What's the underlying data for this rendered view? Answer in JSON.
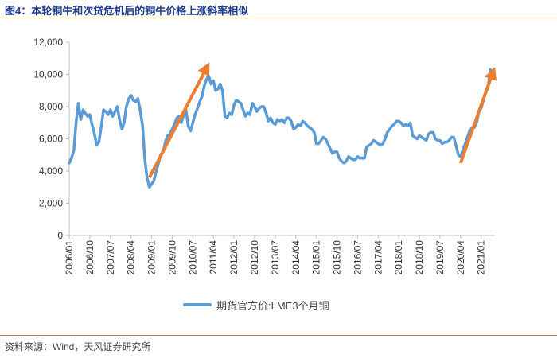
{
  "header": {
    "title": "图4：本轮铜牛和次贷危机后的铜牛价格上涨斜率相似"
  },
  "footer": {
    "source": "资料来源：Wind，天风证券研究所"
  },
  "colors": {
    "line": "#5b9bd5",
    "arrow": "#ed7d31",
    "axis": "#bfbfbf",
    "rule": "#b88a4a",
    "title": "#1f3d8a"
  },
  "chart_data": {
    "type": "line",
    "title": "",
    "xlabel": "",
    "ylabel": "",
    "ylim": [
      0,
      12000
    ],
    "yticks": [
      {
        "value": 0,
        "label": "0"
      },
      {
        "value": 2000,
        "label": "2,000"
      },
      {
        "value": 4000,
        "label": "4,000"
      },
      {
        "value": 6000,
        "label": "6,000"
      },
      {
        "value": 8000,
        "label": "8,000"
      },
      {
        "value": 10000,
        "label": "10,000"
      },
      {
        "value": 12000,
        "label": "12,000"
      }
    ],
    "xlim": [
      2006.0,
      2021.5
    ],
    "xticks": [
      {
        "value": 2006.0,
        "label": "2006/01"
      },
      {
        "value": 2006.75,
        "label": "2006/10"
      },
      {
        "value": 2007.5,
        "label": "2007/07"
      },
      {
        "value": 2008.25,
        "label": "2008/04"
      },
      {
        "value": 2009.0,
        "label": "2009/01"
      },
      {
        "value": 2009.75,
        "label": "2009/10"
      },
      {
        "value": 2010.5,
        "label": "2010/07"
      },
      {
        "value": 2011.25,
        "label": "2011/04"
      },
      {
        "value": 2012.0,
        "label": "2012/01"
      },
      {
        "value": 2012.75,
        "label": "2012/10"
      },
      {
        "value": 2013.5,
        "label": "2013/07"
      },
      {
        "value": 2014.25,
        "label": "2014/04"
      },
      {
        "value": 2015.0,
        "label": "2015/01"
      },
      {
        "value": 2015.75,
        "label": "2015/10"
      },
      {
        "value": 2016.5,
        "label": "2016/07"
      },
      {
        "value": 2017.25,
        "label": "2017/04"
      },
      {
        "value": 2018.0,
        "label": "2018/01"
      },
      {
        "value": 2018.75,
        "label": "2018/10"
      },
      {
        "value": 2019.5,
        "label": "2019/07"
      },
      {
        "value": 2020.25,
        "label": "2020/04"
      },
      {
        "value": 2021.0,
        "label": "2021/01"
      }
    ],
    "series": [
      {
        "name": "期货官方价:LME3个月铜",
        "points": [
          [
            2006.0,
            4500
          ],
          [
            2006.08,
            4800
          ],
          [
            2006.17,
            5300
          ],
          [
            2006.25,
            7000
          ],
          [
            2006.33,
            8200
          ],
          [
            2006.42,
            7200
          ],
          [
            2006.5,
            7800
          ],
          [
            2006.58,
            7600
          ],
          [
            2006.67,
            7400
          ],
          [
            2006.75,
            7500
          ],
          [
            2006.83,
            6900
          ],
          [
            2006.92,
            6300
          ],
          [
            2007.0,
            5600
          ],
          [
            2007.08,
            5800
          ],
          [
            2007.17,
            6800
          ],
          [
            2007.25,
            7800
          ],
          [
            2007.33,
            7700
          ],
          [
            2007.42,
            7500
          ],
          [
            2007.5,
            7800
          ],
          [
            2007.58,
            7400
          ],
          [
            2007.67,
            7700
          ],
          [
            2007.75,
            8000
          ],
          [
            2007.83,
            7200
          ],
          [
            2007.92,
            6600
          ],
          [
            2008.0,
            7000
          ],
          [
            2008.08,
            8000
          ],
          [
            2008.17,
            8500
          ],
          [
            2008.25,
            8700
          ],
          [
            2008.33,
            8400
          ],
          [
            2008.42,
            8300
          ],
          [
            2008.5,
            8500
          ],
          [
            2008.58,
            7800
          ],
          [
            2008.67,
            6800
          ],
          [
            2008.75,
            4800
          ],
          [
            2008.83,
            3600
          ],
          [
            2008.92,
            3000
          ],
          [
            2009.0,
            3200
          ],
          [
            2009.08,
            3400
          ],
          [
            2009.17,
            4000
          ],
          [
            2009.25,
            4500
          ],
          [
            2009.33,
            5000
          ],
          [
            2009.42,
            5200
          ],
          [
            2009.5,
            5800
          ],
          [
            2009.58,
            6200
          ],
          [
            2009.67,
            6300
          ],
          [
            2009.75,
            6600
          ],
          [
            2009.83,
            6900
          ],
          [
            2009.92,
            7300
          ],
          [
            2010.0,
            7400
          ],
          [
            2010.08,
            7000
          ],
          [
            2010.17,
            7500
          ],
          [
            2010.25,
            7800
          ],
          [
            2010.33,
            6800
          ],
          [
            2010.42,
            6500
          ],
          [
            2010.5,
            7000
          ],
          [
            2010.58,
            7500
          ],
          [
            2010.67,
            7900
          ],
          [
            2010.75,
            8300
          ],
          [
            2010.83,
            8600
          ],
          [
            2010.92,
            9300
          ],
          [
            2011.0,
            9700
          ],
          [
            2011.08,
            9900
          ],
          [
            2011.17,
            9400
          ],
          [
            2011.25,
            9600
          ],
          [
            2011.33,
            9000
          ],
          [
            2011.42,
            9100
          ],
          [
            2011.5,
            9400
          ],
          [
            2011.58,
            9000
          ],
          [
            2011.67,
            7400
          ],
          [
            2011.75,
            7300
          ],
          [
            2011.83,
            7600
          ],
          [
            2011.92,
            7500
          ],
          [
            2012.0,
            8100
          ],
          [
            2012.08,
            8400
          ],
          [
            2012.17,
            8300
          ],
          [
            2012.25,
            8200
          ],
          [
            2012.33,
            7800
          ],
          [
            2012.42,
            7400
          ],
          [
            2012.5,
            7600
          ],
          [
            2012.58,
            7500
          ],
          [
            2012.67,
            8200
          ],
          [
            2012.75,
            8000
          ],
          [
            2012.83,
            7700
          ],
          [
            2012.92,
            7900
          ],
          [
            2013.0,
            8000
          ],
          [
            2013.08,
            8000
          ],
          [
            2013.17,
            7600
          ],
          [
            2013.25,
            7100
          ],
          [
            2013.33,
            7300
          ],
          [
            2013.42,
            7000
          ],
          [
            2013.5,
            6900
          ],
          [
            2013.58,
            7200
          ],
          [
            2013.67,
            7100
          ],
          [
            2013.75,
            7200
          ],
          [
            2013.83,
            7000
          ],
          [
            2013.92,
            7300
          ],
          [
            2014.0,
            7300
          ],
          [
            2014.08,
            7100
          ],
          [
            2014.17,
            6600
          ],
          [
            2014.25,
            6700
          ],
          [
            2014.33,
            6900
          ],
          [
            2014.42,
            6800
          ],
          [
            2014.5,
            7100
          ],
          [
            2014.58,
            7000
          ],
          [
            2014.67,
            6800
          ],
          [
            2014.75,
            6700
          ],
          [
            2014.83,
            6600
          ],
          [
            2014.92,
            6400
          ],
          [
            2015.0,
            5700
          ],
          [
            2015.08,
            5700
          ],
          [
            2015.17,
            5900
          ],
          [
            2015.25,
            6100
          ],
          [
            2015.33,
            6000
          ],
          [
            2015.42,
            5700
          ],
          [
            2015.5,
            5400
          ],
          [
            2015.58,
            5100
          ],
          [
            2015.67,
            5200
          ],
          [
            2015.75,
            5200
          ],
          [
            2015.83,
            4800
          ],
          [
            2015.92,
            4600
          ],
          [
            2016.0,
            4500
          ],
          [
            2016.08,
            4600
          ],
          [
            2016.17,
            4900
          ],
          [
            2016.25,
            4800
          ],
          [
            2016.33,
            4700
          ],
          [
            2016.42,
            4700
          ],
          [
            2016.5,
            4900
          ],
          [
            2016.58,
            4800
          ],
          [
            2016.67,
            4800
          ],
          [
            2016.75,
            4800
          ],
          [
            2016.83,
            5500
          ],
          [
            2016.92,
            5600
          ],
          [
            2017.0,
            5700
          ],
          [
            2017.08,
            5900
          ],
          [
            2017.17,
            5800
          ],
          [
            2017.25,
            5700
          ],
          [
            2017.33,
            5600
          ],
          [
            2017.42,
            5700
          ],
          [
            2017.5,
            6000
          ],
          [
            2017.58,
            6400
          ],
          [
            2017.67,
            6600
          ],
          [
            2017.75,
            6800
          ],
          [
            2017.83,
            6900
          ],
          [
            2017.92,
            7100
          ],
          [
            2018.0,
            7100
          ],
          [
            2018.08,
            7000
          ],
          [
            2018.17,
            6800
          ],
          [
            2018.25,
            6900
          ],
          [
            2018.33,
            6800
          ],
          [
            2018.42,
            7000
          ],
          [
            2018.5,
            6200
          ],
          [
            2018.58,
            6100
          ],
          [
            2018.67,
            6000
          ],
          [
            2018.75,
            6200
          ],
          [
            2018.83,
            6100
          ],
          [
            2018.92,
            6000
          ],
          [
            2019.0,
            5900
          ],
          [
            2019.08,
            6300
          ],
          [
            2019.17,
            6400
          ],
          [
            2019.25,
            6400
          ],
          [
            2019.33,
            6000
          ],
          [
            2019.42,
            5900
          ],
          [
            2019.5,
            5900
          ],
          [
            2019.58,
            5700
          ],
          [
            2019.67,
            5800
          ],
          [
            2019.75,
            5800
          ],
          [
            2019.83,
            5900
          ],
          [
            2019.92,
            6100
          ],
          [
            2020.0,
            6100
          ],
          [
            2020.08,
            5600
          ],
          [
            2020.17,
            5000
          ],
          [
            2020.25,
            4900
          ],
          [
            2020.33,
            5300
          ],
          [
            2020.42,
            5700
          ],
          [
            2020.5,
            6100
          ],
          [
            2020.58,
            6500
          ],
          [
            2020.67,
            6700
          ],
          [
            2020.75,
            6700
          ],
          [
            2020.83,
            7000
          ],
          [
            2020.92,
            7700
          ],
          [
            2021.0,
            7900
          ],
          [
            2021.08,
            8400
          ],
          [
            2021.17,
            8900
          ],
          [
            2021.25,
            9200
          ],
          [
            2021.33,
            10300
          ],
          [
            2021.38,
            10000
          ]
        ]
      }
    ],
    "annotations": [
      {
        "type": "arrow",
        "from": [
          2008.92,
          3600
        ],
        "to": [
          2011.0,
          10400
        ]
      },
      {
        "type": "arrow",
        "from": [
          2020.25,
          4500
        ],
        "to": [
          2021.42,
          10100
        ]
      }
    ],
    "legend": {
      "position": "bottom",
      "label": "期货官方价:LME3个月铜"
    }
  }
}
